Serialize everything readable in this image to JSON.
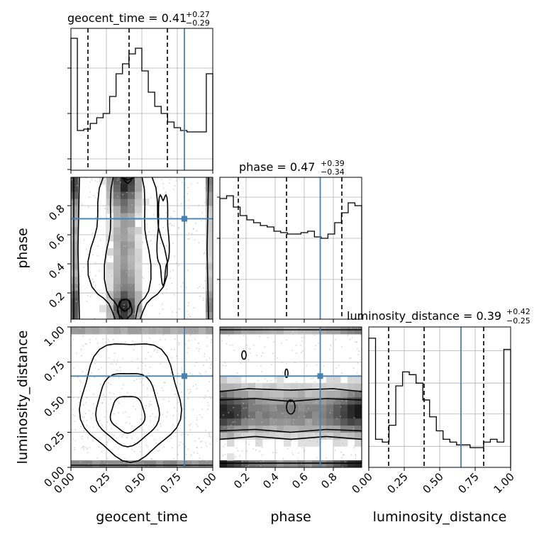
{
  "chart_data": {
    "type": "corner",
    "parameters": [
      "geocent_time",
      "phase",
      "luminosity_distance"
    ],
    "truth": {
      "geocent_time": 0.8,
      "phase": 0.71,
      "luminosity_distance": 0.65
    },
    "colors": {
      "truth": "#4682b4",
      "hist": "#000000",
      "quantile": "#000000",
      "grid": "#b0b0b0",
      "scatter": "#bdbdbd"
    },
    "titles": [
      {
        "param": "geocent_time",
        "main": "geocent_time = 0.41",
        "sup": "+0.27",
        "sub": "−0.29"
      },
      {
        "param": "phase",
        "main": "phase = 0.47",
        "sup": "+0.39",
        "sub": "−0.34"
      },
      {
        "param": "luminosity_distance",
        "main": "luminosity_distance = 0.39",
        "sup": "+0.42",
        "sub": "−0.25"
      }
    ],
    "histograms": [
      {
        "param": "geocent_time",
        "range": [
          0,
          1
        ],
        "quantiles": [
          0.12,
          0.41,
          0.68
        ],
        "values": [
          0.93,
          0.28,
          0.29,
          0.33,
          0.37,
          0.4,
          0.52,
          0.68,
          0.75,
          0.82,
          0.86,
          0.7,
          0.55,
          0.45,
          0.4,
          0.34,
          0.3,
          0.28,
          0.27,
          0.27,
          0.27,
          0.68
        ]
      },
      {
        "param": "phase",
        "range": [
          0,
          1
        ],
        "quantiles": [
          0.13,
          0.47,
          0.86
        ],
        "values": [
          0.85,
          0.87,
          0.79,
          0.73,
          0.7,
          0.68,
          0.66,
          0.65,
          0.62,
          0.61,
          0.6,
          0.6,
          0.61,
          0.62,
          0.58,
          0.57,
          0.6,
          0.68,
          0.75,
          0.82,
          0.8
        ]
      },
      {
        "param": "luminosity_distance",
        "range": [
          0,
          1
        ],
        "quantiles": [
          0.14,
          0.39,
          0.81
        ],
        "values": [
          0.92,
          0.2,
          0.18,
          0.3,
          0.58,
          0.68,
          0.66,
          0.6,
          0.48,
          0.36,
          0.26,
          0.2,
          0.18,
          0.16,
          0.16,
          0.14,
          0.14,
          0.18,
          0.2,
          0.18,
          0.84
        ]
      }
    ],
    "ticks": {
      "geocent_time": [
        "0.00",
        "0.25",
        "0.50",
        "0.75",
        "1.00"
      ],
      "phase": [
        "0.2",
        "0.4",
        "0.6",
        "0.8"
      ],
      "luminosity_distance": [
        "0.00",
        "0.25",
        "0.50",
        "0.75",
        "1.00"
      ],
      "phase_y": [
        "0.2",
        "0.4",
        "0.6",
        "0.8"
      ],
      "luminosity_distance_y": [
        "0.00",
        "0.25",
        "0.50",
        "0.75",
        "1.00"
      ]
    },
    "axis_labels": {
      "x": [
        "geocent_time",
        "phase",
        "luminosity_distance"
      ],
      "y": [
        "phase",
        "luminosity_distance"
      ]
    },
    "grid": true
  }
}
